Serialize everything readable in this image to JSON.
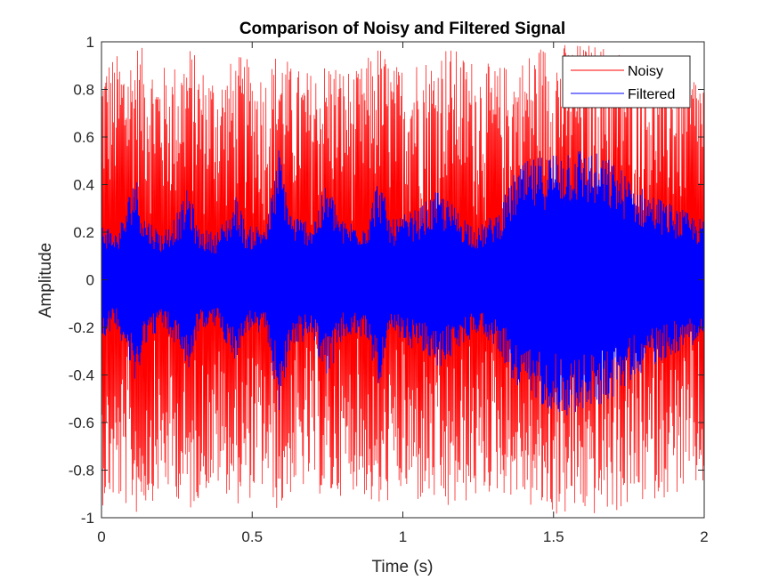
{
  "chart_data": {
    "type": "line",
    "title": "Comparison of Noisy and Filtered Signal",
    "xlabel": "Time (s)",
    "ylabel": "Amplitude",
    "xlim": [
      0,
      2
    ],
    "ylim": [
      -1,
      1
    ],
    "x_ticks": [
      0,
      0.5,
      1,
      1.5,
      2
    ],
    "x_tick_labels": [
      "0",
      "0.5",
      "1",
      "1.5",
      "2"
    ],
    "y_ticks": [
      -1,
      -0.8,
      -0.6,
      -0.4,
      -0.2,
      0,
      0.2,
      0.4,
      0.6,
      0.8,
      1
    ],
    "y_tick_labels": [
      "-1",
      "-0.8",
      "-0.6",
      "-0.4",
      "-0.2",
      "0",
      "0.2",
      "0.4",
      "0.6",
      "0.8",
      "1"
    ],
    "grid": false,
    "legend_position": "top-right",
    "series": [
      {
        "name": "Noisy",
        "color": "#ff0000",
        "envelope_time": [
          0,
          0.05,
          0.1,
          0.12,
          0.15,
          0.2,
          0.25,
          0.29,
          0.33,
          0.4,
          0.45,
          0.5,
          0.55,
          0.59,
          0.63,
          0.7,
          0.76,
          0.8,
          0.85,
          0.92,
          0.97,
          1.05,
          1.1,
          1.14,
          1.2,
          1.25,
          1.3,
          1.38,
          1.45,
          1.55,
          1.65,
          1.75,
          1.85,
          1.95,
          2.0
        ],
        "envelope_outer": [
          0.95,
          0.95,
          0.97,
          1.0,
          0.95,
          0.9,
          0.92,
          1.0,
          0.9,
          0.88,
          0.95,
          0.92,
          0.88,
          1.0,
          0.9,
          0.88,
          0.95,
          0.9,
          0.88,
          1.0,
          0.9,
          0.95,
          0.95,
          1.0,
          0.95,
          0.93,
          0.9,
          0.92,
          1.0,
          1.0,
          1.0,
          0.97,
          0.92,
          0.9,
          0.88
        ],
        "envelope_inner": [
          0.2,
          0.25,
          0.25,
          0.35,
          0.25,
          0.2,
          0.2,
          0.3,
          0.2,
          0.2,
          0.22,
          0.2,
          0.2,
          0.32,
          0.2,
          0.2,
          0.25,
          0.22,
          0.2,
          0.3,
          0.22,
          0.2,
          0.22,
          0.3,
          0.22,
          0.2,
          0.18,
          0.2,
          0.22,
          0.25,
          0.22,
          0.2,
          0.18,
          0.2,
          0.2
        ]
      },
      {
        "name": "Filtered",
        "color": "#0000ff",
        "envelope_time": [
          0,
          0.05,
          0.08,
          0.11,
          0.14,
          0.2,
          0.26,
          0.29,
          0.32,
          0.38,
          0.43,
          0.45,
          0.48,
          0.55,
          0.59,
          0.63,
          0.7,
          0.75,
          0.8,
          0.88,
          0.92,
          0.96,
          1.05,
          1.12,
          1.18,
          1.25,
          1.32,
          1.38,
          1.45,
          1.55,
          1.62,
          1.7,
          1.78,
          1.85,
          1.92,
          2.0
        ],
        "envelope_amp": [
          0.25,
          0.2,
          0.3,
          0.47,
          0.28,
          0.2,
          0.3,
          0.4,
          0.22,
          0.2,
          0.3,
          0.37,
          0.22,
          0.25,
          0.57,
          0.28,
          0.25,
          0.42,
          0.25,
          0.25,
          0.45,
          0.25,
          0.3,
          0.38,
          0.3,
          0.22,
          0.3,
          0.48,
          0.52,
          0.58,
          0.55,
          0.5,
          0.4,
          0.35,
          0.3,
          0.25
        ]
      }
    ]
  }
}
